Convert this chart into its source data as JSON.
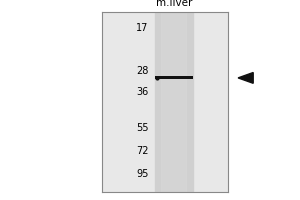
{
  "lane_label": "m.liver",
  "mw_markers": [
    95,
    72,
    55,
    36,
    28,
    17
  ],
  "band_mw": 30.5,
  "fig_bg": "#ffffff",
  "panel_bg": "#e8e8e8",
  "lane_bg": "#d0d0d0",
  "band_color": "#111111",
  "border_color": "#888888",
  "label_fontsize": 7.5,
  "marker_fontsize": 7,
  "arrow_color": "#111111",
  "log_min": 1.146,
  "log_max": 2.07
}
